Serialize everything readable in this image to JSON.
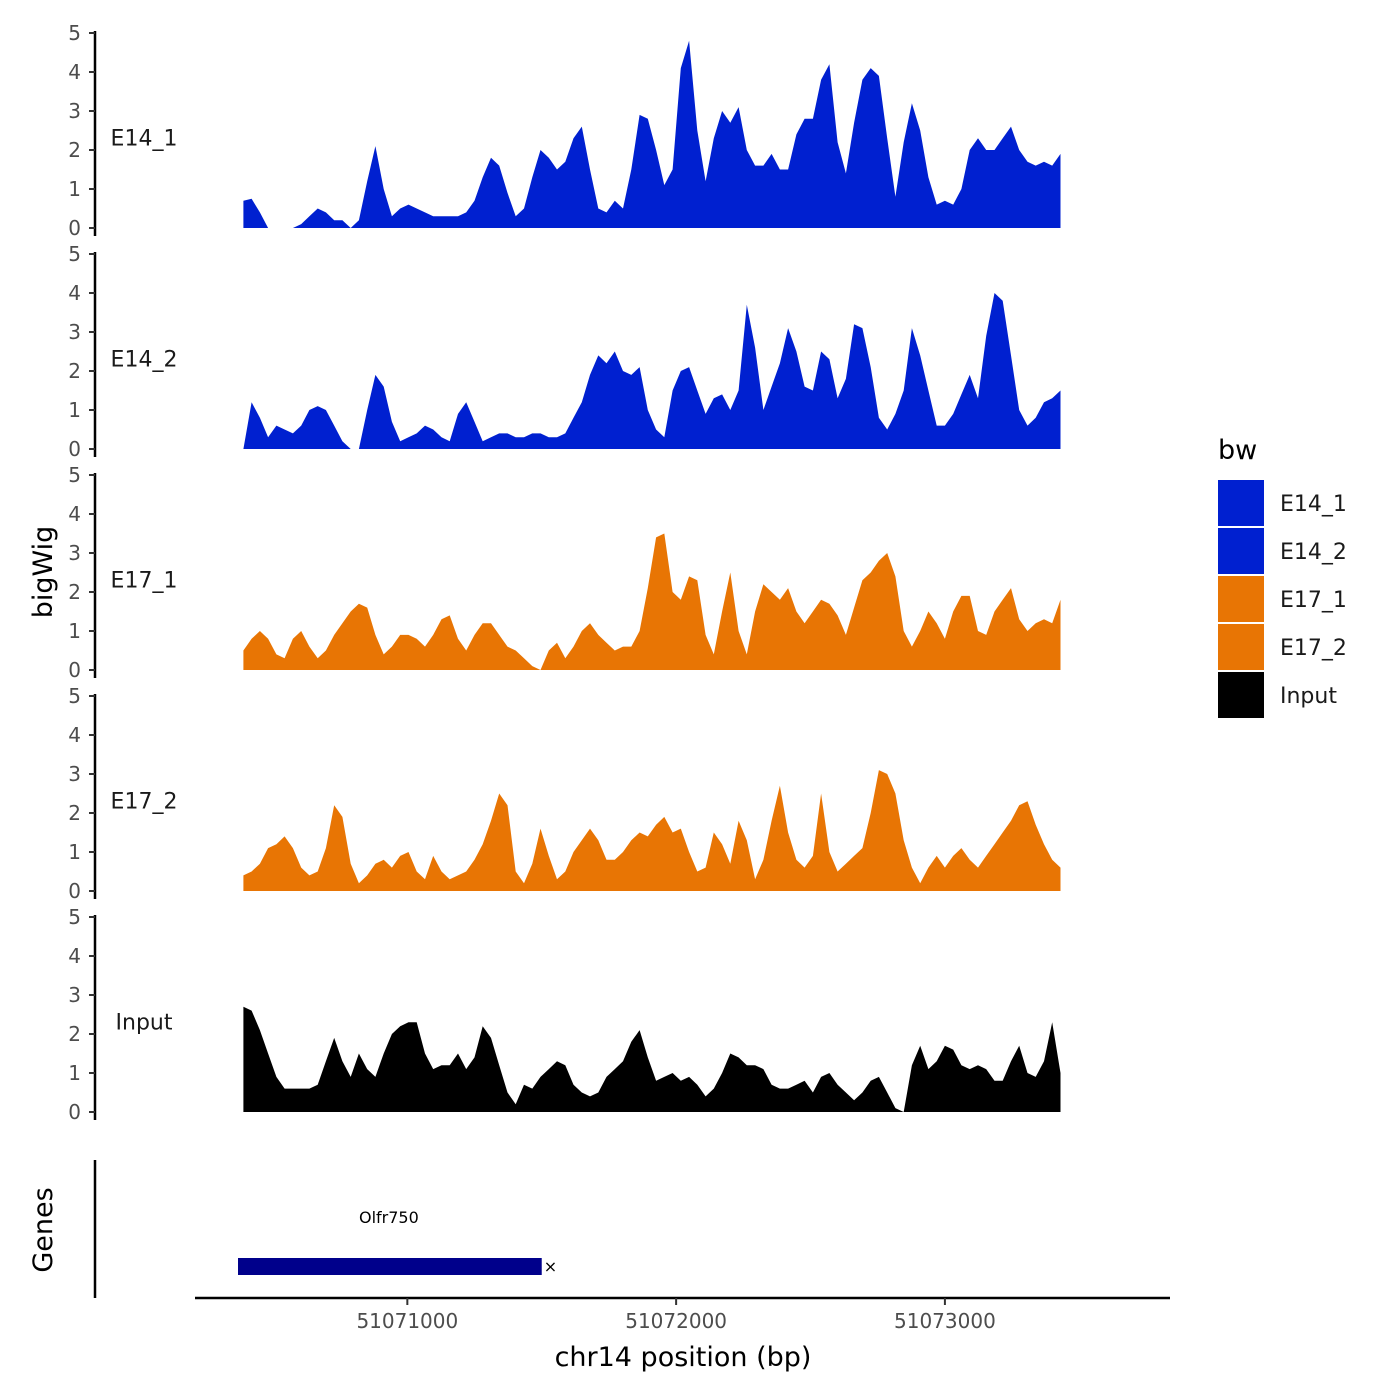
{
  "chart_data": {
    "type": "area",
    "ylabel": "bigWig",
    "xlabel": "chr14 position (bp)",
    "ylim": [
      0,
      5
    ],
    "yticks": [
      "0",
      "1",
      "2",
      "3",
      "4",
      "5"
    ],
    "xlim": [
      51070210,
      51073830
    ],
    "x_start": 51070390,
    "x_end": 51073430,
    "xticks": [
      {
        "value": 51071000,
        "label": "51071000"
      },
      {
        "value": 51072000,
        "label": "51072000"
      },
      {
        "value": 51073000,
        "label": "51073000"
      }
    ],
    "legend_title": "bw",
    "series": [
      {
        "name": "E14_1",
        "color": "#0020D0",
        "values": [
          0.7,
          0.75,
          0.4,
          0,
          0,
          0,
          0,
          0.1,
          0.3,
          0.5,
          0.4,
          0.2,
          0.2,
          0,
          0.2,
          1.2,
          2.1,
          1.0,
          0.3,
          0.5,
          0.6,
          0.5,
          0.4,
          0.3,
          0.3,
          0.3,
          0.3,
          0.4,
          0.7,
          1.3,
          1.8,
          1.6,
          0.9,
          0.3,
          0.5,
          1.3,
          2.0,
          1.8,
          1.5,
          1.7,
          2.3,
          2.6,
          1.5,
          0.5,
          0.4,
          0.7,
          0.5,
          1.5,
          2.9,
          2.8,
          2.0,
          1.1,
          1.5,
          4.1,
          4.8,
          2.5,
          1.2,
          2.3,
          3.0,
          2.7,
          3.1,
          2.0,
          1.6,
          1.6,
          1.9,
          1.5,
          1.5,
          2.4,
          2.8,
          2.8,
          3.8,
          4.2,
          2.2,
          1.4,
          2.7,
          3.8,
          4.1,
          3.9,
          2.3,
          0.8,
          2.2,
          3.2,
          2.5,
          1.3,
          0.6,
          0.7,
          0.6,
          1.0,
          2.0,
          2.3,
          2.0,
          2.0,
          2.3,
          2.6,
          2.0,
          1.7,
          1.6,
          1.7,
          1.6,
          1.9
        ]
      },
      {
        "name": "E14_2",
        "color": "#0020D0",
        "values": [
          0,
          1.2,
          0.8,
          0.3,
          0.6,
          0.5,
          0.4,
          0.6,
          1.0,
          1.1,
          1.0,
          0.6,
          0.2,
          0,
          0,
          1.0,
          1.9,
          1.6,
          0.7,
          0.2,
          0.3,
          0.4,
          0.6,
          0.5,
          0.3,
          0.2,
          0.9,
          1.2,
          0.7,
          0.2,
          0.3,
          0.4,
          0.4,
          0.3,
          0.3,
          0.4,
          0.4,
          0.3,
          0.3,
          0.4,
          0.8,
          1.2,
          1.9,
          2.4,
          2.2,
          2.5,
          2.0,
          1.9,
          2.1,
          1.0,
          0.5,
          0.3,
          1.5,
          2.0,
          2.1,
          1.5,
          0.9,
          1.3,
          1.4,
          1.0,
          1.5,
          3.7,
          2.6,
          1.0,
          1.6,
          2.2,
          3.1,
          2.5,
          1.6,
          1.5,
          2.5,
          2.3,
          1.3,
          1.8,
          3.2,
          3.1,
          2.1,
          0.8,
          0.5,
          0.9,
          1.5,
          3.1,
          2.4,
          1.5,
          0.6,
          0.6,
          0.9,
          1.4,
          1.9,
          1.3,
          2.9,
          4.0,
          3.8,
          2.4,
          1.0,
          0.6,
          0.8,
          1.2,
          1.3,
          1.5
        ]
      },
      {
        "name": "E17_1",
        "color": "#E87504",
        "values": [
          0.5,
          0.8,
          1.0,
          0.8,
          0.4,
          0.3,
          0.8,
          1.0,
          0.6,
          0.3,
          0.5,
          0.9,
          1.2,
          1.5,
          1.7,
          1.6,
          0.9,
          0.4,
          0.6,
          0.9,
          0.9,
          0.8,
          0.6,
          0.9,
          1.3,
          1.4,
          0.8,
          0.5,
          0.9,
          1.2,
          1.2,
          0.9,
          0.6,
          0.5,
          0.3,
          0.1,
          0,
          0.5,
          0.7,
          0.3,
          0.6,
          1.0,
          1.2,
          0.9,
          0.7,
          0.5,
          0.6,
          0.6,
          1.0,
          2.1,
          3.4,
          3.5,
          2.0,
          1.8,
          2.4,
          2.3,
          0.9,
          0.4,
          1.5,
          2.5,
          1.0,
          0.4,
          1.5,
          2.2,
          2.0,
          1.8,
          2.1,
          1.5,
          1.2,
          1.5,
          1.8,
          1.7,
          1.4,
          0.9,
          1.6,
          2.3,
          2.5,
          2.8,
          3.0,
          2.4,
          1.0,
          0.6,
          1.0,
          1.5,
          1.2,
          0.8,
          1.5,
          1.9,
          1.9,
          1.0,
          0.9,
          1.5,
          1.8,
          2.1,
          1.3,
          1.0,
          1.2,
          1.3,
          1.2,
          1.8
        ]
      },
      {
        "name": "E17_2",
        "color": "#E87504",
        "values": [
          0.4,
          0.5,
          0.7,
          1.1,
          1.2,
          1.4,
          1.1,
          0.6,
          0.4,
          0.5,
          1.1,
          2.2,
          1.9,
          0.7,
          0.2,
          0.4,
          0.7,
          0.8,
          0.6,
          0.9,
          1.0,
          0.5,
          0.3,
          0.9,
          0.5,
          0.3,
          0.4,
          0.5,
          0.8,
          1.2,
          1.8,
          2.5,
          2.2,
          0.5,
          0.2,
          0.7,
          1.6,
          0.9,
          0.3,
          0.5,
          1.0,
          1.3,
          1.6,
          1.3,
          0.8,
          0.8,
          1.0,
          1.3,
          1.5,
          1.4,
          1.7,
          1.9,
          1.5,
          1.6,
          1.0,
          0.5,
          0.6,
          1.5,
          1.2,
          0.7,
          1.8,
          1.3,
          0.3,
          0.8,
          1.8,
          2.7,
          1.5,
          0.8,
          0.6,
          0.9,
          2.5,
          1.0,
          0.5,
          0.7,
          0.9,
          1.1,
          2.0,
          3.1,
          3.0,
          2.5,
          1.3,
          0.6,
          0.2,
          0.6,
          0.9,
          0.6,
          0.9,
          1.1,
          0.8,
          0.6,
          0.9,
          1.2,
          1.5,
          1.8,
          2.2,
          2.3,
          1.7,
          1.2,
          0.8,
          0.6
        ]
      },
      {
        "name": "Input",
        "color": "#000000",
        "values": [
          2.7,
          2.6,
          2.1,
          1.5,
          0.9,
          0.6,
          0.6,
          0.6,
          0.6,
          0.7,
          1.3,
          1.9,
          1.3,
          0.9,
          1.5,
          1.1,
          0.9,
          1.5,
          2.0,
          2.2,
          2.3,
          2.3,
          1.5,
          1.1,
          1.2,
          1.2,
          1.5,
          1.1,
          1.4,
          2.2,
          1.9,
          1.2,
          0.5,
          0.2,
          0.7,
          0.6,
          0.9,
          1.1,
          1.3,
          1.2,
          0.7,
          0.5,
          0.4,
          0.5,
          0.9,
          1.1,
          1.3,
          1.8,
          2.1,
          1.4,
          0.8,
          0.9,
          1.0,
          0.8,
          0.9,
          0.7,
          0.4,
          0.6,
          1.0,
          1.5,
          1.4,
          1.2,
          1.2,
          1.1,
          0.7,
          0.6,
          0.6,
          0.7,
          0.8,
          0.5,
          0.9,
          1.0,
          0.7,
          0.5,
          0.3,
          0.5,
          0.8,
          0.9,
          0.5,
          0.1,
          0,
          1.2,
          1.7,
          1.1,
          1.3,
          1.7,
          1.6,
          1.2,
          1.1,
          1.2,
          1.1,
          0.8,
          0.8,
          1.3,
          1.7,
          1.0,
          0.9,
          1.3,
          2.3,
          1.0
        ]
      }
    ],
    "genes": [
      {
        "name": "Olfr750",
        "start": 51070370,
        "end": 51071500,
        "color": "#00008B"
      }
    ],
    "gene_track_label": "Genes"
  }
}
